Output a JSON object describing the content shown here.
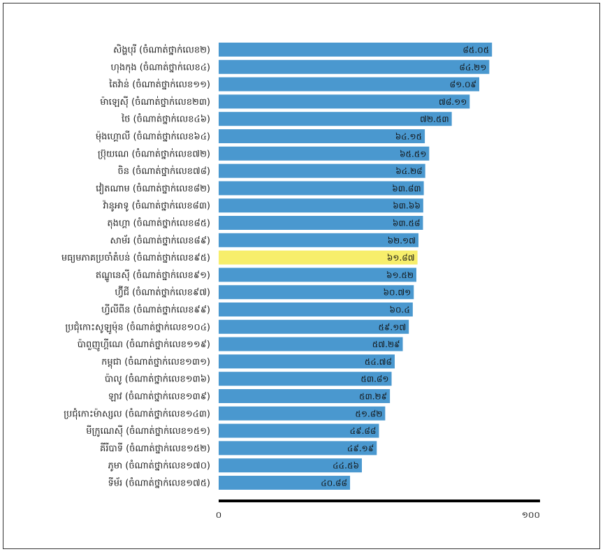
{
  "chart_data": {
    "type": "bar",
    "orientation": "horizontal",
    "categories": [
      "សិង្ហបុរី (ចំណាត់ថ្នាក់លេខ២)",
      "ហុងកុង (ចំណាត់ថ្នាក់លេខ៤)",
      "តៃវ៉ាន់ (ចំណាត់ថ្នាក់លេខ១១)",
      "ម៉ាឡេស៊ី (ចំណាត់ថ្នាក់លេខ២៣)",
      "ថៃ (ចំណាត់ថ្នាក់លេខ៤៦)",
      "ម៉ុងហ្គោលី (ចំណាត់ថ្នាក់លេខ៦៤)",
      "ប្រ៊ុយណេ (ចំណាត់ថ្នាក់លេខ៧២)",
      "ចិន (ចំណាត់ថ្នាក់លេខ៧៨)",
      "វៀតណាម (ចំណាត់ថ្នាក់លេខ៨២)",
      "វ៉ានូអាទូ (ចំណាត់ថ្នាក់លេខ៨៣)",
      "តុងហ្គា (ចំណាត់ថ្នាក់លេខ៨៥)",
      "សាម័រ (ចំណាត់ថ្នាក់លេខ៨៩)",
      "មធ្យមភាគប្រចាំតំបន់ (ចំណាត់ថ្នាក់លេខ៩៥)",
      "ឥណ្ឌូនេស៊ី (ចំណាត់ថ្នាក់លេខ៩១)",
      "ហ្វ៊ីជី (ចំណាត់ថ្នាក់លេខ៩៧)",
      "ហ្វីលីពីន (ចំណាត់ថ្នាក់លេខ៩៩)",
      "ប្រជុំកោះសូឡូម៉ុន (ចំណាត់ថ្នាក់លេខ១០៤)",
      "ប៉ាពួញូហ្គីណេ (ចំណាត់ថ្នាក់លេខ១១៩)",
      "កម្ពុជា (ចំណាត់ថ្នាក់លេខ១៣១)",
      "ប៉ាលូ (ចំណាត់ថ្នាក់លេខ១៣៦)",
      "ឡាវ (ចំណាត់ថ្នាក់លេខ១៣៩)",
      "ប្រជុំកោះម៉ាស្សល (ចំណាត់ថ្នាក់លេខ១៤៣)",
      "មីក្រូណេស៊ី (ចំណាត់ថ្នាក់លេខ១៥១)",
      "គីរីបាទី (ចំណាត់ថ្នាក់លេខ១៥២)",
      "ភូមា (ចំណាត់ថ្នាក់លេខ១៧០)",
      "ទីម័រ (ចំណាត់ថ្នាក់លេខ១៧៥)"
    ],
    "values": [
      85.05,
      84.21,
      81.09,
      78.11,
      72.53,
      64.15,
      65.51,
      64.28,
      63.83,
      63.66,
      63.58,
      62.17,
      61.87,
      61.52,
      60.71,
      60.4,
      59.17,
      57.29,
      54.78,
      53.81,
      53.29,
      51.82,
      49.88,
      49.19,
      44.56,
      40.88
    ],
    "value_labels": [
      "៨៥.០៥",
      "៨៤.២១",
      "៨១.០៩",
      "៧៨.១១",
      "៧២.៥៣",
      "៦៤.១៥",
      "៦៥.៥១",
      "៦៤.២៨",
      "៦៣.៨៣",
      "៦៣.៦៦",
      "៦៣.៥៨",
      "៦២.១៧",
      "៦១.៨៧",
      "៦១.៥២",
      "៦០.៧១",
      "៦០.៤",
      "៥៩.១៧",
      "៥៧.២៩",
      "៥៤.៧៨",
      "៥៣.៨១",
      "៥៣.២៩",
      "៥១.៨២",
      "៤៩.៨៨",
      "៤៩.១៩",
      "៤៤.៥៦",
      "៤០.៨៨"
    ],
    "highlight_index": 12,
    "xlim": [
      0,
      100
    ],
    "x_ticks": [
      0,
      100
    ],
    "x_tick_labels": [
      "០",
      "១០០"
    ],
    "colors": {
      "bar": "#4a98cf",
      "highlight": "#f7ee6b",
      "axis": "#000000"
    }
  }
}
